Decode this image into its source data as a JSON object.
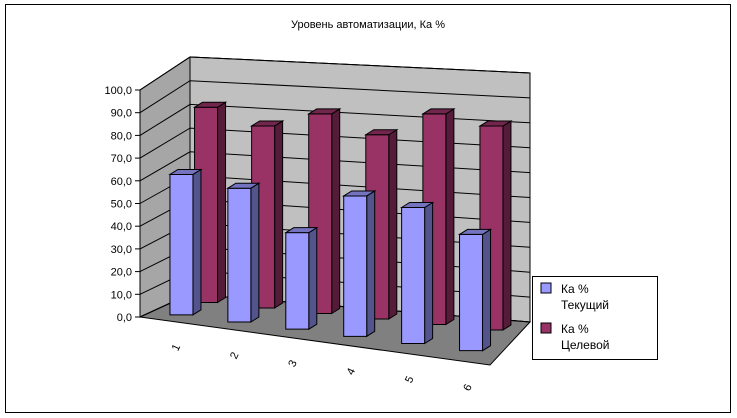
{
  "chart_data": {
    "type": "bar",
    "title": "Уровень автоматизации, Ка %",
    "categories": [
      "1",
      "2",
      "3",
      "4",
      "5",
      "6"
    ],
    "series": [
      {
        "name": "Ка % Текущий",
        "legend_lines": [
          "Ка %",
          "Текущий"
        ],
        "values": [
          64,
          61,
          44,
          64,
          62,
          53
        ],
        "color": "#9999FF"
      },
      {
        "name": "Ка % Целевой",
        "legend_lines": [
          "Ка %",
          "Целевой"
        ],
        "values": [
          89,
          83,
          91,
          84,
          96,
          93
        ],
        "color": "#993366"
      }
    ],
    "ytick_labels": [
      "0,0",
      "10,0",
      "20,0",
      "30,0",
      "40,0",
      "50,0",
      "60,0",
      "70,0",
      "80,0",
      "90,0",
      "100,0"
    ],
    "ylim": [
      0,
      100
    ],
    "grid": true,
    "legend": "right",
    "three_d": true
  }
}
